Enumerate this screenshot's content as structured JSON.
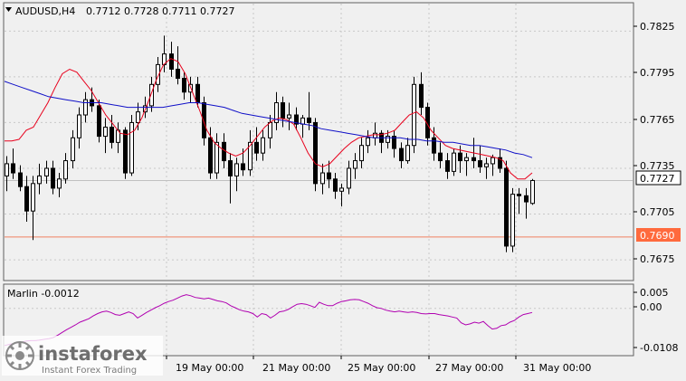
{
  "chart_title": {
    "symbol_tf": "AUDUSD,H4",
    "ohlc": "0.7712 0.7728 0.7711 0.7727"
  },
  "price_axis": {
    "ticks": [
      "0.7825",
      "0.7795",
      "0.7765",
      "0.7735",
      "0.7705",
      "0.7675"
    ],
    "current_price_label": "0.7727",
    "support_label": "0.7690"
  },
  "time_axis": {
    "labels": [
      "19 May 00:00",
      "21 May 00:00",
      "25 May 00:00",
      "27 May 00:00",
      "31 May 00:00"
    ]
  },
  "indicator": {
    "label": "Marlin -0.0012",
    "ticks": [
      "0.005",
      "0.00",
      "-0.0108"
    ]
  },
  "watermark": {
    "brand": "instaforex",
    "tagline": "Instant Forex Trading"
  },
  "colors": {
    "background": "#f0f0f0",
    "grid": "#c8c8c8",
    "candle": "#000000",
    "fast_ma": "#e8001c",
    "slow_ma": "#1010c8",
    "support_line": "#f08060",
    "current_price_line": "#c0c0c0",
    "oscillator": "#b000b0"
  },
  "chart_data": [
    {
      "type": "candlestick",
      "title": "AUDUSD,H4",
      "ylim": [
        0.7662,
        0.7843
      ],
      "overlays": [
        {
          "name": "fast moving average",
          "color": "#e8001c"
        },
        {
          "name": "slow moving average",
          "color": "#1010c8"
        }
      ],
      "horizontal_lines": [
        0.769,
        0.7727
      ],
      "candles": [
        [
          0.773,
          0.7743,
          0.772,
          0.7738
        ],
        [
          0.7738,
          0.7748,
          0.7728,
          0.7732
        ],
        [
          0.7732,
          0.7737,
          0.772,
          0.7723
        ],
        [
          0.7723,
          0.773,
          0.77,
          0.7707
        ],
        [
          0.7707,
          0.773,
          0.7688,
          0.7725
        ],
        [
          0.7725,
          0.7738,
          0.7718,
          0.773
        ],
        [
          0.773,
          0.774,
          0.7725,
          0.7735
        ],
        [
          0.7735,
          0.774,
          0.7718,
          0.7722
        ],
        [
          0.7722,
          0.7732,
          0.7716,
          0.7728
        ],
        [
          0.7728,
          0.7745,
          0.7725,
          0.774
        ],
        [
          0.774,
          0.776,
          0.7735,
          0.7755
        ],
        [
          0.7755,
          0.7775,
          0.7748,
          0.777
        ],
        [
          0.777,
          0.7785,
          0.7765,
          0.778
        ],
        [
          0.778,
          0.7788,
          0.7772,
          0.7776
        ],
        [
          0.7776,
          0.778,
          0.7752,
          0.7756
        ],
        [
          0.7756,
          0.7768,
          0.7745,
          0.7762
        ],
        [
          0.7762,
          0.777,
          0.7748,
          0.7752
        ],
        [
          0.7752,
          0.7765,
          0.7745,
          0.776
        ],
        [
          0.776,
          0.7762,
          0.7728,
          0.7732
        ],
        [
          0.7732,
          0.777,
          0.773,
          0.7765
        ],
        [
          0.7765,
          0.7778,
          0.776,
          0.7772
        ],
        [
          0.7772,
          0.7782,
          0.7768,
          0.7776
        ],
        [
          0.7776,
          0.7795,
          0.7772,
          0.779
        ],
        [
          0.779,
          0.7808,
          0.7785,
          0.7803
        ],
        [
          0.7803,
          0.7822,
          0.7798,
          0.781
        ],
        [
          0.781,
          0.7818,
          0.7795,
          0.78
        ],
        [
          0.78,
          0.7815,
          0.779,
          0.7794
        ],
        [
          0.7794,
          0.7798,
          0.778,
          0.7785
        ],
        [
          0.7785,
          0.7795,
          0.7778,
          0.779
        ],
        [
          0.779,
          0.7795,
          0.7775,
          0.7778
        ],
        [
          0.7778,
          0.7782,
          0.775,
          0.7755
        ],
        [
          0.7755,
          0.7762,
          0.7728,
          0.7732
        ],
        [
          0.7732,
          0.7758,
          0.7728,
          0.7752
        ],
        [
          0.7752,
          0.7758,
          0.7735,
          0.774
        ],
        [
          0.774,
          0.7745,
          0.7712,
          0.773
        ],
        [
          0.773,
          0.7742,
          0.772,
          0.7738
        ],
        [
          0.7738,
          0.7748,
          0.773,
          0.7734
        ],
        [
          0.7734,
          0.776,
          0.773,
          0.7752
        ],
        [
          0.7752,
          0.7762,
          0.774,
          0.7745
        ],
        [
          0.7745,
          0.776,
          0.774,
          0.7755
        ],
        [
          0.7755,
          0.777,
          0.7748,
          0.7765
        ],
        [
          0.7765,
          0.7785,
          0.776,
          0.7778
        ],
        [
          0.7778,
          0.7782,
          0.7762,
          0.7768
        ],
        [
          0.7768,
          0.7778,
          0.776,
          0.777
        ],
        [
          0.777,
          0.7775,
          0.776,
          0.7764
        ],
        [
          0.7764,
          0.777,
          0.7755,
          0.7768
        ],
        [
          0.7768,
          0.7785,
          0.776,
          0.7765
        ],
        [
          0.7765,
          0.7768,
          0.772,
          0.7725
        ],
        [
          0.7725,
          0.7738,
          0.7718,
          0.7732
        ],
        [
          0.7732,
          0.774,
          0.7722,
          0.7728
        ],
        [
          0.7728,
          0.7732,
          0.7715,
          0.772
        ],
        [
          0.772,
          0.7725,
          0.771,
          0.7722
        ],
        [
          0.7722,
          0.774,
          0.7718,
          0.7735
        ],
        [
          0.7735,
          0.7745,
          0.7728,
          0.774
        ],
        [
          0.774,
          0.7755,
          0.7735,
          0.775
        ],
        [
          0.775,
          0.776,
          0.7745,
          0.7755
        ],
        [
          0.7755,
          0.7765,
          0.775,
          0.7758
        ],
        [
          0.7758,
          0.776,
          0.7745,
          0.7752
        ],
        [
          0.7752,
          0.776,
          0.7748,
          0.7756
        ],
        [
          0.7756,
          0.776,
          0.7742,
          0.7748
        ],
        [
          0.7748,
          0.7752,
          0.7735,
          0.774
        ],
        [
          0.774,
          0.7755,
          0.7738,
          0.775
        ],
        [
          0.775,
          0.7795,
          0.7745,
          0.779
        ],
        [
          0.779,
          0.7798,
          0.777,
          0.7775
        ],
        [
          0.7775,
          0.7778,
          0.775,
          0.7755
        ],
        [
          0.7755,
          0.7762,
          0.774,
          0.7745
        ],
        [
          0.7745,
          0.7752,
          0.7735,
          0.774
        ],
        [
          0.774,
          0.7745,
          0.7728,
          0.7733
        ],
        [
          0.7733,
          0.7748,
          0.773,
          0.7745
        ],
        [
          0.7745,
          0.775,
          0.7732,
          0.774
        ],
        [
          0.774,
          0.7745,
          0.773,
          0.7742
        ],
        [
          0.7742,
          0.7755,
          0.7735,
          0.774
        ],
        [
          0.774,
          0.775,
          0.7732,
          0.7736
        ],
        [
          0.7736,
          0.7742,
          0.7728,
          0.7738
        ],
        [
          0.7738,
          0.7744,
          0.773,
          0.7742
        ],
        [
          0.7742,
          0.7748,
          0.7732,
          0.7735
        ],
        [
          0.7735,
          0.774,
          0.768,
          0.7684
        ],
        [
          0.7684,
          0.7722,
          0.768,
          0.7718
        ],
        [
          0.7718,
          0.7722,
          0.7705,
          0.7717
        ],
        [
          0.7717,
          0.7722,
          0.7702,
          0.7713
        ],
        [
          0.7712,
          0.7728,
          0.7711,
          0.7727
        ]
      ],
      "fast_ma": [
        0.7753,
        0.7753,
        0.7754,
        0.776,
        0.7762,
        0.777,
        0.7778,
        0.7788,
        0.7797,
        0.78,
        0.7798,
        0.7792,
        0.7786,
        0.7778,
        0.777,
        0.7764,
        0.7758,
        0.7757,
        0.776,
        0.7768,
        0.778,
        0.7793,
        0.7803,
        0.7807,
        0.7805,
        0.7797,
        0.7785,
        0.7773,
        0.776,
        0.7752,
        0.7748,
        0.7745,
        0.7743,
        0.7745,
        0.775,
        0.7756,
        0.7762,
        0.7766,
        0.7768,
        0.7767,
        0.7764,
        0.7755,
        0.7745,
        0.7738,
        0.7736,
        0.7738,
        0.7743,
        0.7748,
        0.7752,
        0.7755,
        0.7756,
        0.7757,
        0.7757,
        0.7758,
        0.776,
        0.7765,
        0.777,
        0.7772,
        0.7768,
        0.776,
        0.7755,
        0.775,
        0.7748,
        0.7747,
        0.7746,
        0.7745,
        0.7744,
        0.7743,
        0.7742,
        0.774,
        0.7732,
        0.7728,
        0.7728,
        0.7732
      ],
      "slow_ma": [
        0.7792,
        0.779,
        0.7788,
        0.7786,
        0.7784,
        0.7782,
        0.7781,
        0.778,
        0.7779,
        0.7778,
        0.7778,
        0.7778,
        0.7777,
        0.7776,
        0.7775,
        0.7775,
        0.7775,
        0.7775,
        0.7775,
        0.7776,
        0.7777,
        0.7778,
        0.7778,
        0.7777,
        0.7776,
        0.7775,
        0.7773,
        0.7771,
        0.777,
        0.7769,
        0.7768,
        0.7767,
        0.7766,
        0.7765,
        0.7764,
        0.7763,
        0.7761,
        0.776,
        0.7759,
        0.7758,
        0.7757,
        0.7756,
        0.7755,
        0.7755,
        0.7755,
        0.7755,
        0.7754,
        0.7754,
        0.7753,
        0.7753,
        0.7752,
        0.7752,
        0.7751,
        0.775,
        0.775,
        0.7749,
        0.7748,
        0.7747,
        0.7745,
        0.7744,
        0.7742
      ]
    },
    {
      "type": "line",
      "title": "Marlin -0.0012",
      "ylim": [
        -0.0135,
        0.0068
      ],
      "zero_line": true,
      "values": [
        -0.0108,
        -0.0105,
        -0.0102,
        -0.01,
        -0.0098,
        -0.0095,
        -0.0094,
        -0.0094,
        -0.0092,
        -0.009,
        -0.0088,
        -0.0085,
        -0.0078,
        -0.007,
        -0.0062,
        -0.0055,
        -0.0048,
        -0.004,
        -0.0035,
        -0.003,
        -0.0022,
        -0.0015,
        -0.001,
        -0.0008,
        -0.0012,
        -0.0018,
        -0.002,
        -0.0015,
        -0.001,
        -0.0015,
        -0.0028,
        -0.002,
        -0.0012,
        -0.0005,
        0.0002,
        0.0008,
        0.0015,
        0.002,
        0.0024,
        0.003,
        0.0036,
        0.004,
        0.0037,
        0.0032,
        0.003,
        0.0028,
        0.003,
        0.0026,
        0.0022,
        0.002,
        0.0016,
        0.0008,
        0.0002,
        -0.0004,
        -0.0008,
        -0.001,
        -0.0015,
        -0.0025,
        -0.0015,
        -0.0018,
        -0.0028,
        -0.002,
        -0.001,
        -0.0008,
        -0.0003,
        0.0005,
        0.0012,
        0.0014,
        0.0012,
        0.0008,
        0.0003,
        0.0018,
        0.0012,
        0.0008,
        0.0008,
        0.0015,
        0.002,
        0.0022,
        0.0025,
        0.0026,
        0.0025,
        0.002,
        0.0015,
        0.0008,
        0.0002,
        0.0,
        -0.0005,
        -0.0008,
        -0.001,
        -0.0008,
        -0.001,
        -0.0012,
        -0.001,
        -0.0012,
        -0.0015,
        -0.0016,
        -0.0015,
        -0.0015,
        -0.0018,
        -0.002,
        -0.0022,
        -0.0025,
        -0.0028,
        -0.0042,
        -0.0048,
        -0.0045,
        -0.004,
        -0.0043,
        -0.0038,
        -0.005,
        -0.006,
        -0.0058,
        -0.005,
        -0.0048,
        -0.004,
        -0.0035,
        -0.0025,
        -0.0018,
        -0.0015,
        -0.0012
      ]
    }
  ]
}
